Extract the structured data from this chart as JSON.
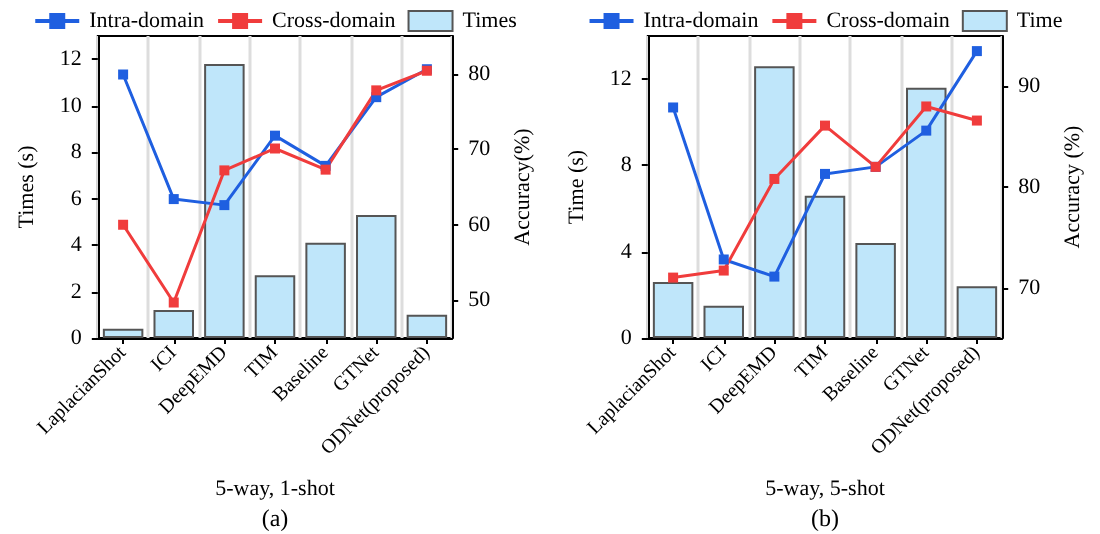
{
  "chart_data": [
    {
      "type": "bar",
      "xlabel": "5-way, 1-shot",
      "ylabel": "Times (s)",
      "y2label": "Accuracy(%)",
      "categories": [
        "LaplacianShot",
        "ICI",
        "DeepEMD",
        "TIM",
        "Baseline",
        "GTNet",
        "ODNet(proposed)"
      ],
      "series": [
        {
          "name": "Intra-domain",
          "type": "line",
          "axis": "y2",
          "color": "#1f5fe0",
          "values": [
            79.9,
            63.4,
            62.6,
            71.8,
            67.8,
            76.9,
            80.6
          ]
        },
        {
          "name": "Cross-domain",
          "type": "line",
          "axis": "y2",
          "color": "#f03c3c",
          "values": [
            60.0,
            49.7,
            67.2,
            70.1,
            67.3,
            77.8,
            80.4
          ]
        },
        {
          "name": "Times",
          "color": "#bfe6fa",
          "values": [
            0.4,
            1.2,
            11.8,
            2.7,
            4.1,
            5.3,
            1.0
          ]
        }
      ],
      "ylim": [
        0,
        13
      ],
      "yticks": [
        0,
        2,
        4,
        6,
        8,
        10,
        12
      ],
      "y2lim": [
        45,
        85
      ],
      "y2ticks": [
        50,
        60,
        70,
        80
      ],
      "grid": "x",
      "legend": "top",
      "marker": "square",
      "annotations": [
        "(a)"
      ]
    },
    {
      "type": "bar",
      "xlabel": "5-way, 5-shot",
      "ylabel": "Time (s)",
      "y2label": "Accuracy (%)",
      "categories": [
        "LaplacianShot",
        "ICI",
        "DeepEMD",
        "TIM",
        "Baseline",
        "GTNet",
        "ODNet(proposed)"
      ],
      "series": [
        {
          "name": "Intra-domain",
          "type": "line",
          "axis": "y2",
          "color": "#1f5fe0",
          "values": [
            87.9,
            72.8,
            71.1,
            81.3,
            82.0,
            85.6,
            93.5
          ]
        },
        {
          "name": "Cross-domain",
          "type": "line",
          "axis": "y2",
          "color": "#f03c3c",
          "values": [
            71.0,
            71.7,
            80.8,
            86.1,
            82.0,
            88.0,
            86.6
          ]
        },
        {
          "name": "Time",
          "color": "#bfe6fa",
          "values": [
            2.6,
            1.5,
            12.6,
            6.6,
            4.4,
            11.6,
            2.4
          ]
        }
      ],
      "ylim": [
        0,
        14
      ],
      "yticks": [
        0,
        4,
        8,
        12
      ],
      "y2lim": [
        65,
        95
      ],
      "y2ticks": [
        70,
        80,
        90
      ],
      "grid": "x",
      "legend": "top",
      "marker": "square",
      "annotations": [
        "(b)"
      ]
    }
  ]
}
